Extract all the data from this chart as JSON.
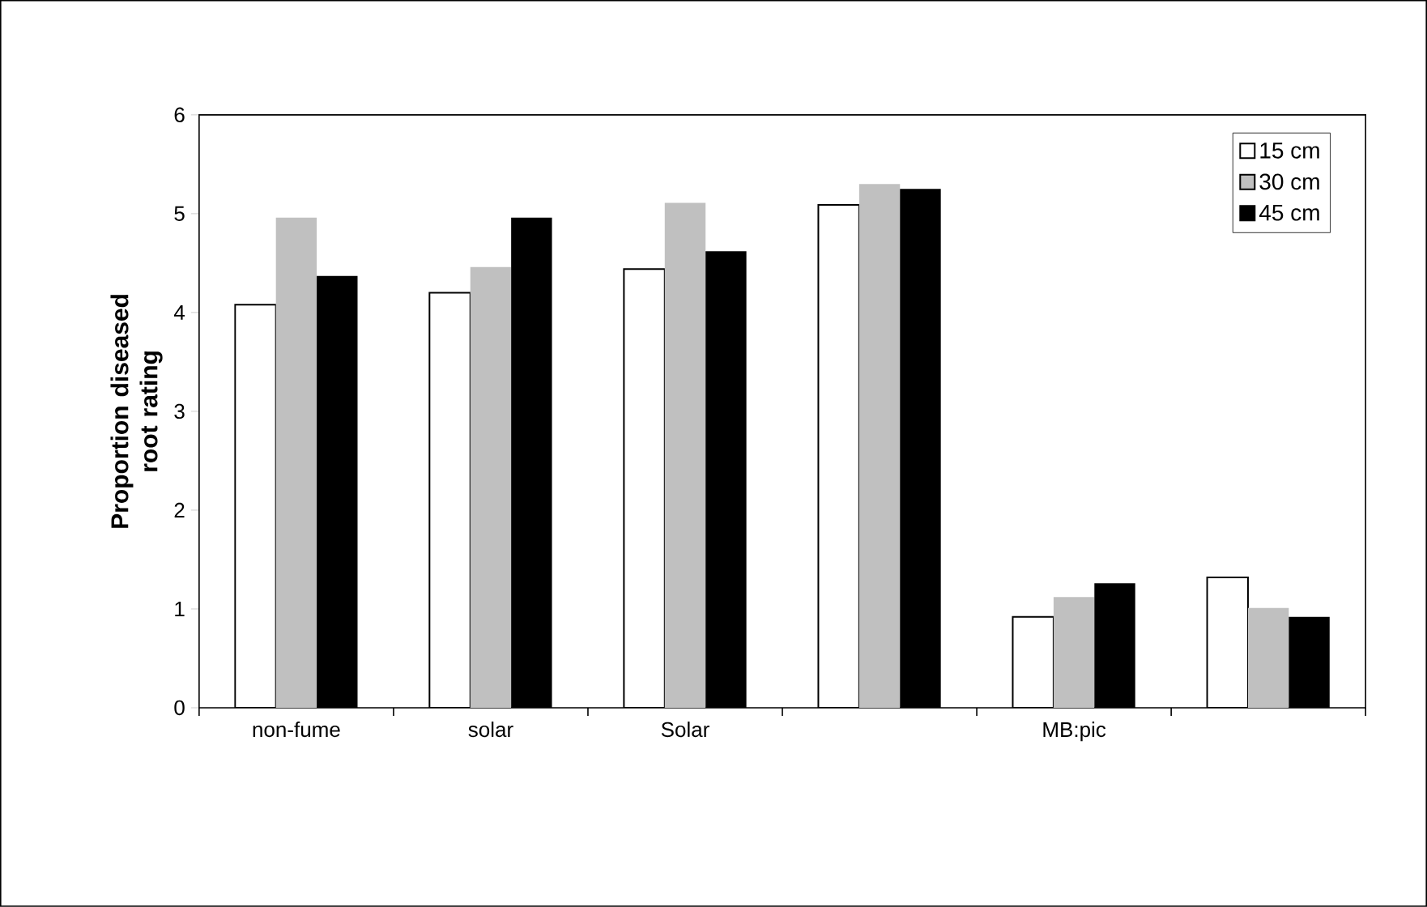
{
  "chart_data": {
    "type": "bar",
    "ylabel": "Proportion diseased root rating",
    "categories": [
      "non-fume",
      "solar",
      "Solar",
      null,
      "MB:pic",
      null
    ],
    "series": [
      {
        "name": "15 cm",
        "color": "#ffffff",
        "values": [
          4.08,
          4.2,
          4.44,
          5.09,
          0.92,
          1.32
        ]
      },
      {
        "name": "30 cm",
        "color": "#c0c0c0",
        "values": [
          4.96,
          4.46,
          5.11,
          5.3,
          1.12,
          1.01
        ]
      },
      {
        "name": "45 cm",
        "color": "#000000",
        "values": [
          4.37,
          4.96,
          4.62,
          5.25,
          1.26,
          0.92
        ]
      }
    ],
    "ylim": [
      0,
      6
    ],
    "yticks": [
      0,
      1,
      2,
      3,
      4,
      5,
      6
    ],
    "grid": false,
    "legend": "top right"
  }
}
